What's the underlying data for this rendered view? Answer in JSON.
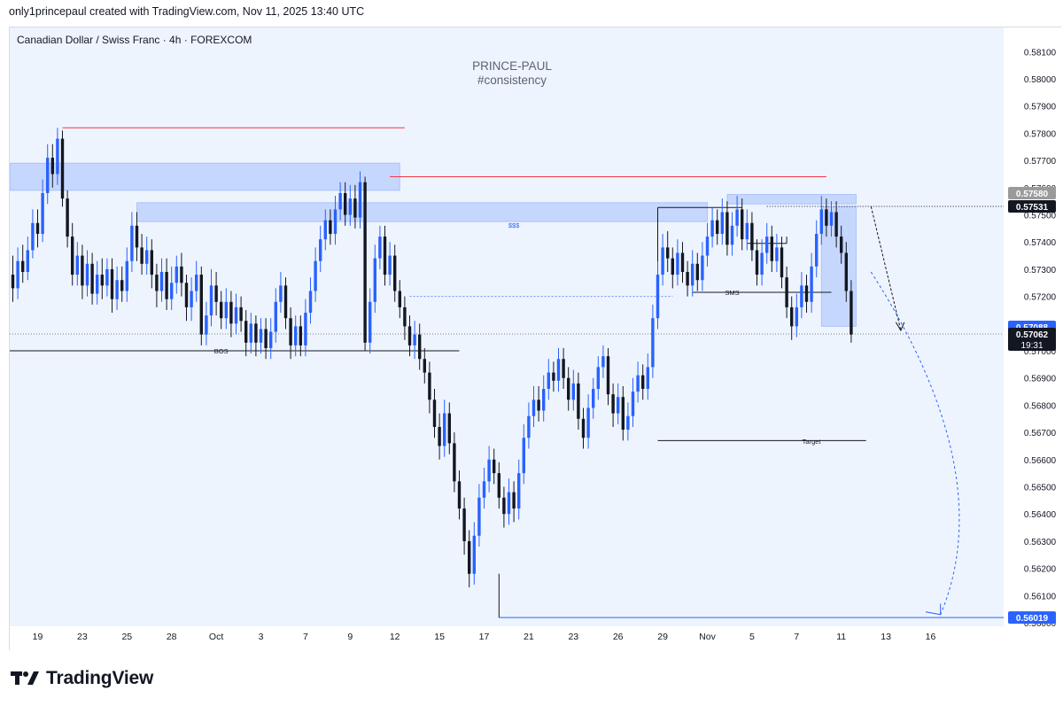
{
  "header": {
    "credit": "only1princepaul created with TradingView.com, Nov 11, 2025 13:40 UTC"
  },
  "chart_data": {
    "type": "candlestick",
    "title": "Canadian Dollar / Swiss Franc · 4h · FOREXCOM",
    "watermark": [
      "PRINCE-PAUL",
      "#consistency"
    ],
    "y_axis": {
      "range": [
        0.56,
        0.5815
      ],
      "ticks": [
        "0.58100",
        "0.58000",
        "0.57900",
        "0.57800",
        "0.57700",
        "0.57600",
        "0.57500",
        "0.57400",
        "0.57300",
        "0.57200",
        "0.57100",
        "0.57000",
        "0.56900",
        "0.56800",
        "0.56700",
        "0.56600",
        "0.56500",
        "0.56400",
        "0.56300",
        "0.56200",
        "0.56100",
        "0.56000"
      ]
    },
    "x_axis": {
      "labels": [
        {
          "label": "19",
          "i": 5
        },
        {
          "label": "23",
          "i": 14
        },
        {
          "label": "25",
          "i": 23
        },
        {
          "label": "28",
          "i": 32
        },
        {
          "label": "Oct",
          "i": 41
        },
        {
          "label": "3",
          "i": 50
        },
        {
          "label": "7",
          "i": 59
        },
        {
          "label": "9",
          "i": 68
        },
        {
          "label": "12",
          "i": 77
        },
        {
          "label": "15",
          "i": 86
        },
        {
          "label": "17",
          "i": 95
        },
        {
          "label": "21",
          "i": 104
        },
        {
          "label": "23",
          "i": 113
        },
        {
          "label": "26",
          "i": 122
        },
        {
          "label": "29",
          "i": 131
        },
        {
          "label": "Nov",
          "i": 140
        },
        {
          "label": "5",
          "i": 149
        },
        {
          "label": "7",
          "i": 158
        },
        {
          "label": "11",
          "i": 167
        },
        {
          "label": "13",
          "i": 176
        },
        {
          "label": "16",
          "i": 185
        }
      ]
    },
    "price_labels": [
      {
        "value": 0.5758,
        "text": "0.57580",
        "color": "#9a9a9a"
      },
      {
        "value": 0.57531,
        "text": "0.57531",
        "color": "#131722"
      },
      {
        "value": 0.57088,
        "text": "0.57088",
        "color": "#2962ff"
      },
      {
        "value": 0.57062,
        "text": "0.57062",
        "sub": "19:31",
        "color": "#131722"
      },
      {
        "value": 0.56019,
        "text": "0.56019",
        "color": "#2962ff"
      }
    ],
    "annotations": [
      {
        "text": "BOS",
        "value": 0.57,
        "i": 42
      },
      {
        "text": "$$$",
        "value": 0.57462,
        "i": 101
      },
      {
        "text": "SMS",
        "value": 0.57215,
        "i": 145
      },
      {
        "text": "Target",
        "value": 0.56668,
        "i": 161
      }
    ],
    "zones": [
      {
        "i0": -1,
        "i1": 78,
        "top": 0.5769,
        "bottom": 0.5759
      },
      {
        "i0": 25,
        "i1": 140,
        "top": 0.57545,
        "bottom": 0.57475
      },
      {
        "i0": 144,
        "i1": 170,
        "top": 0.57575,
        "bottom": 0.5754
      },
      {
        "i0": 163,
        "i1": 170,
        "top": 0.5753,
        "bottom": 0.5709
      }
    ],
    "candles": [
      [
        0.5728,
        0.5723,
        0.5735,
        0.5718
      ],
      [
        0.5723,
        0.5733,
        0.5738,
        0.5719
      ],
      [
        0.5733,
        0.5729,
        0.5739,
        0.5725
      ],
      [
        0.5729,
        0.5737,
        0.5742,
        0.5726
      ],
      [
        0.5737,
        0.5747,
        0.5752,
        0.5734
      ],
      [
        0.5747,
        0.5743,
        0.5752,
        0.5738
      ],
      [
        0.5743,
        0.5758,
        0.5763,
        0.574
      ],
      [
        0.5758,
        0.5771,
        0.5776,
        0.5754
      ],
      [
        0.5771,
        0.5765,
        0.5776,
        0.576
      ],
      [
        0.5765,
        0.5778,
        0.5782,
        0.5761
      ],
      [
        0.5778,
        0.5756,
        0.5781,
        0.5753
      ],
      [
        0.5756,
        0.5742,
        0.5759,
        0.5738
      ],
      [
        0.5742,
        0.5728,
        0.5747,
        0.5724
      ],
      [
        0.5728,
        0.5735,
        0.574,
        0.5724
      ],
      [
        0.5735,
        0.5724,
        0.5739,
        0.5719
      ],
      [
        0.5724,
        0.5732,
        0.5737,
        0.572
      ],
      [
        0.5732,
        0.5721,
        0.5736,
        0.5717
      ],
      [
        0.5721,
        0.5728,
        0.5733,
        0.5717
      ],
      [
        0.5728,
        0.5724,
        0.5734,
        0.5719
      ],
      [
        0.5724,
        0.573,
        0.5734,
        0.572
      ],
      [
        0.573,
        0.5719,
        0.5734,
        0.5714
      ],
      [
        0.5719,
        0.5726,
        0.5731,
        0.5715
      ],
      [
        0.5726,
        0.5722,
        0.5731,
        0.5718
      ],
      [
        0.5722,
        0.5733,
        0.5738,
        0.5718
      ],
      [
        0.5733,
        0.5746,
        0.5751,
        0.5729
      ],
      [
        0.5746,
        0.5738,
        0.5751,
        0.5733
      ],
      [
        0.5738,
        0.5732,
        0.5743,
        0.5728
      ],
      [
        0.5732,
        0.5737,
        0.5742,
        0.5728
      ],
      [
        0.5737,
        0.5728,
        0.5741,
        0.5723
      ],
      [
        0.5728,
        0.5722,
        0.5732,
        0.5716
      ],
      [
        0.5722,
        0.5729,
        0.5734,
        0.5718
      ],
      [
        0.5729,
        0.5719,
        0.5734,
        0.5715
      ],
      [
        0.5719,
        0.5725,
        0.5731,
        0.5715
      ],
      [
        0.5725,
        0.5731,
        0.5735,
        0.5721
      ],
      [
        0.5731,
        0.5725,
        0.5736,
        0.572
      ],
      [
        0.5725,
        0.5716,
        0.5728,
        0.5711
      ],
      [
        0.5716,
        0.5722,
        0.5727,
        0.5711
      ],
      [
        0.5722,
        0.5728,
        0.5733,
        0.5718
      ],
      [
        0.5728,
        0.5706,
        0.5731,
        0.5702
      ],
      [
        0.5706,
        0.5713,
        0.5718,
        0.5702
      ],
      [
        0.5713,
        0.5724,
        0.573,
        0.5709
      ],
      [
        0.5724,
        0.5718,
        0.5729,
        0.5713
      ],
      [
        0.5718,
        0.5712,
        0.5722,
        0.5708
      ],
      [
        0.5712,
        0.5718,
        0.5723,
        0.5708
      ],
      [
        0.5718,
        0.571,
        0.5722,
        0.5705
      ],
      [
        0.571,
        0.5716,
        0.5721,
        0.5706
      ],
      [
        0.5716,
        0.5711,
        0.572,
        0.5707
      ],
      [
        0.5711,
        0.5703,
        0.5715,
        0.5698
      ],
      [
        0.5703,
        0.571,
        0.5714,
        0.5699
      ],
      [
        0.571,
        0.5703,
        0.5713,
        0.5698
      ],
      [
        0.5703,
        0.5708,
        0.5712,
        0.5699
      ],
      [
        0.5708,
        0.5701,
        0.5712,
        0.5697
      ],
      [
        0.5701,
        0.5707,
        0.5712,
        0.5697
      ],
      [
        0.5707,
        0.5718,
        0.5723,
        0.5703
      ],
      [
        0.5718,
        0.5724,
        0.5729,
        0.5714
      ],
      [
        0.5724,
        0.5712,
        0.5727,
        0.5708
      ],
      [
        0.5712,
        0.5702,
        0.5716,
        0.5697
      ],
      [
        0.5702,
        0.5709,
        0.5713,
        0.5698
      ],
      [
        0.5709,
        0.5702,
        0.5713,
        0.5698
      ],
      [
        0.5702,
        0.5714,
        0.5719,
        0.5698
      ],
      [
        0.5714,
        0.5722,
        0.5727,
        0.571
      ],
      [
        0.5722,
        0.5733,
        0.5738,
        0.5718
      ],
      [
        0.5733,
        0.5741,
        0.5746,
        0.5729
      ],
      [
        0.5741,
        0.5748,
        0.5752,
        0.5737
      ],
      [
        0.5748,
        0.5743,
        0.5752,
        0.5739
      ],
      [
        0.5743,
        0.5752,
        0.5757,
        0.5739
      ],
      [
        0.5752,
        0.5758,
        0.5762,
        0.5748
      ],
      [
        0.5758,
        0.575,
        0.5762,
        0.5746
      ],
      [
        0.575,
        0.5756,
        0.5761,
        0.5746
      ],
      [
        0.5756,
        0.5749,
        0.5761,
        0.5745
      ],
      [
        0.5749,
        0.5762,
        0.5766,
        0.5745
      ],
      [
        0.5762,
        0.5703,
        0.5764,
        0.57
      ],
      [
        0.5703,
        0.5718,
        0.5723,
        0.5699
      ],
      [
        0.5718,
        0.5734,
        0.5739,
        0.5714
      ],
      [
        0.5734,
        0.5742,
        0.5746,
        0.573
      ],
      [
        0.5742,
        0.5728,
        0.5746,
        0.5724
      ],
      [
        0.5728,
        0.5735,
        0.574,
        0.5724
      ],
      [
        0.5735,
        0.5722,
        0.5739,
        0.5718
      ],
      [
        0.5722,
        0.5716,
        0.5726,
        0.5712
      ],
      [
        0.5716,
        0.5709,
        0.572,
        0.5704
      ],
      [
        0.5709,
        0.5702,
        0.5713,
        0.5698
      ],
      [
        0.5702,
        0.5706,
        0.5711,
        0.5697
      ],
      [
        0.5706,
        0.5697,
        0.571,
        0.5693
      ],
      [
        0.5697,
        0.5692,
        0.5701,
        0.5688
      ],
      [
        0.5692,
        0.5682,
        0.5696,
        0.5677
      ],
      [
        0.5682,
        0.5672,
        0.5686,
        0.5668
      ],
      [
        0.5672,
        0.5665,
        0.5677,
        0.566
      ],
      [
        0.5665,
        0.5677,
        0.5682,
        0.5661
      ],
      [
        0.5677,
        0.5666,
        0.5681,
        0.5662
      ],
      [
        0.5666,
        0.5652,
        0.567,
        0.5648
      ],
      [
        0.5652,
        0.5642,
        0.5656,
        0.5638
      ],
      [
        0.5642,
        0.563,
        0.5646,
        0.5625
      ],
      [
        0.563,
        0.5618,
        0.5634,
        0.5613
      ],
      [
        0.5618,
        0.5632,
        0.5637,
        0.5614
      ],
      [
        0.5632,
        0.5646,
        0.5651,
        0.5628
      ],
      [
        0.5646,
        0.5652,
        0.5657,
        0.5642
      ],
      [
        0.5652,
        0.566,
        0.5665,
        0.5648
      ],
      [
        0.566,
        0.5655,
        0.5664,
        0.5651
      ],
      [
        0.5655,
        0.5646,
        0.5659,
        0.5642
      ],
      [
        0.5646,
        0.564,
        0.565,
        0.5635
      ],
      [
        0.564,
        0.5648,
        0.5653,
        0.5636
      ],
      [
        0.5648,
        0.5642,
        0.5652,
        0.5637
      ],
      [
        0.5642,
        0.5655,
        0.566,
        0.5638
      ],
      [
        0.5655,
        0.5668,
        0.5673,
        0.5651
      ],
      [
        0.5668,
        0.5676,
        0.5681,
        0.5664
      ],
      [
        0.5676,
        0.5682,
        0.5687,
        0.5672
      ],
      [
        0.5682,
        0.5678,
        0.5687,
        0.5674
      ],
      [
        0.5678,
        0.5686,
        0.5691,
        0.5674
      ],
      [
        0.5686,
        0.5692,
        0.5697,
        0.5682
      ],
      [
        0.5692,
        0.5689,
        0.5696,
        0.5685
      ],
      [
        0.5689,
        0.5697,
        0.5701,
        0.5685
      ],
      [
        0.5697,
        0.569,
        0.5701,
        0.5686
      ],
      [
        0.569,
        0.5682,
        0.5694,
        0.5678
      ],
      [
        0.5682,
        0.5688,
        0.5693,
        0.5678
      ],
      [
        0.5688,
        0.5675,
        0.5692,
        0.5671
      ],
      [
        0.5675,
        0.5668,
        0.5679,
        0.5664
      ],
      [
        0.5668,
        0.5679,
        0.5684,
        0.5664
      ],
      [
        0.5679,
        0.5686,
        0.569,
        0.5675
      ],
      [
        0.5686,
        0.5694,
        0.5698,
        0.5682
      ],
      [
        0.5694,
        0.5698,
        0.5702,
        0.569
      ],
      [
        0.5698,
        0.5684,
        0.5701,
        0.568
      ],
      [
        0.5684,
        0.5677,
        0.5688,
        0.5672
      ],
      [
        0.5677,
        0.5683,
        0.5688,
        0.5673
      ],
      [
        0.5683,
        0.5671,
        0.5687,
        0.5667
      ],
      [
        0.5671,
        0.5676,
        0.5681,
        0.5667
      ],
      [
        0.5676,
        0.5685,
        0.569,
        0.5672
      ],
      [
        0.5685,
        0.5691,
        0.5696,
        0.5681
      ],
      [
        0.5691,
        0.5686,
        0.5695,
        0.5682
      ],
      [
        0.5686,
        0.5694,
        0.5699,
        0.5682
      ],
      [
        0.5694,
        0.5712,
        0.5717,
        0.569
      ],
      [
        0.5712,
        0.5728,
        0.5733,
        0.5708
      ],
      [
        0.5728,
        0.5738,
        0.5743,
        0.5724
      ],
      [
        0.5738,
        0.5734,
        0.5744,
        0.5729
      ],
      [
        0.5734,
        0.5728,
        0.5738,
        0.5723
      ],
      [
        0.5728,
        0.5736,
        0.5741,
        0.5724
      ],
      [
        0.5736,
        0.5729,
        0.574,
        0.5725
      ],
      [
        0.5729,
        0.5724,
        0.5733,
        0.572
      ],
      [
        0.5724,
        0.5732,
        0.5737,
        0.572
      ],
      [
        0.5732,
        0.5726,
        0.5736,
        0.5722
      ],
      [
        0.5726,
        0.5735,
        0.574,
        0.5722
      ],
      [
        0.5735,
        0.5742,
        0.5747,
        0.5731
      ],
      [
        0.5742,
        0.5748,
        0.5753,
        0.5738
      ],
      [
        0.5748,
        0.5743,
        0.5752,
        0.5739
      ],
      [
        0.5743,
        0.5751,
        0.5756,
        0.5739
      ],
      [
        0.5751,
        0.5739,
        0.5755,
        0.5735
      ],
      [
        0.5739,
        0.5746,
        0.5751,
        0.5735
      ],
      [
        0.5746,
        0.5752,
        0.5757,
        0.5742
      ],
      [
        0.5752,
        0.5741,
        0.5756,
        0.5737
      ],
      [
        0.5741,
        0.5747,
        0.5752,
        0.5737
      ],
      [
        0.5747,
        0.5737,
        0.5751,
        0.5733
      ],
      [
        0.5737,
        0.5728,
        0.5741,
        0.5724
      ],
      [
        0.5728,
        0.5736,
        0.5741,
        0.5724
      ],
      [
        0.5736,
        0.5742,
        0.5747,
        0.5732
      ],
      [
        0.5742,
        0.5733,
        0.5746,
        0.5729
      ],
      [
        0.5733,
        0.5738,
        0.5743,
        0.5729
      ],
      [
        0.5738,
        0.5727,
        0.5742,
        0.5723
      ],
      [
        0.5727,
        0.5716,
        0.5731,
        0.5712
      ],
      [
        0.5716,
        0.5709,
        0.572,
        0.5704
      ],
      [
        0.5709,
        0.5716,
        0.5721,
        0.5705
      ],
      [
        0.5716,
        0.5724,
        0.5729,
        0.5712
      ],
      [
        0.5724,
        0.5718,
        0.5728,
        0.5714
      ],
      [
        0.5718,
        0.5731,
        0.5736,
        0.5714
      ],
      [
        0.5731,
        0.5743,
        0.5748,
        0.5727
      ],
      [
        0.5743,
        0.5752,
        0.5757,
        0.5739
      ],
      [
        0.5752,
        0.5746,
        0.5756,
        0.5742
      ],
      [
        0.5746,
        0.5751,
        0.5755,
        0.5742
      ],
      [
        0.5751,
        0.5742,
        0.5755,
        0.5738
      ],
      [
        0.5742,
        0.5736,
        0.5746,
        0.5732
      ],
      [
        0.5736,
        0.5722,
        0.574,
        0.5718
      ],
      [
        0.5722,
        0.5706,
        0.5726,
        0.5703
      ]
    ]
  }
}
